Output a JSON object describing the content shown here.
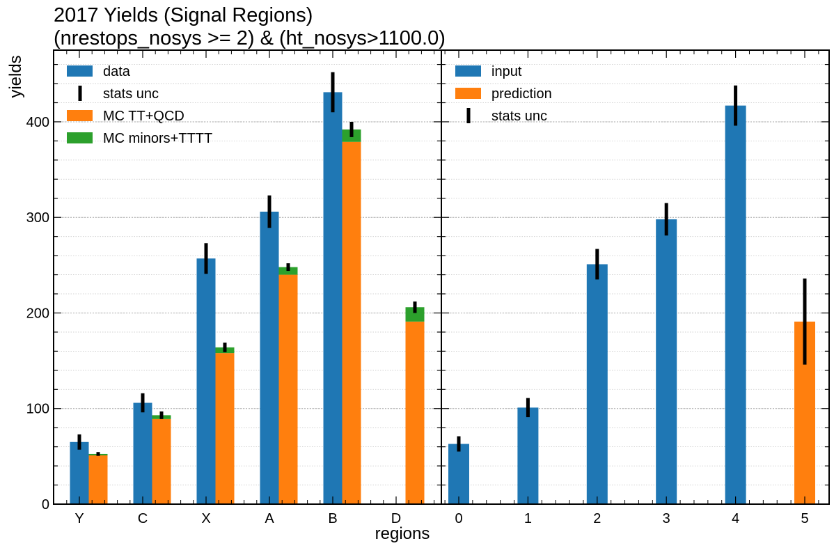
{
  "title_line1": "2017 Yields (Signal Regions)",
  "title_line2": "(nrestops_nosys >= 2) & (ht_nosys>1100.0)",
  "xlabel": "regions",
  "ylabel": "yields",
  "colors": {
    "blue": "#1f77b4",
    "orange": "#ff7f0e",
    "green": "#2ca02c",
    "err": "#000000"
  },
  "chart_data": [
    {
      "type": "bar",
      "categories": [
        "Y",
        "C",
        "X",
        "A",
        "B",
        "D"
      ],
      "ylim": [
        0,
        475
      ],
      "yticks": [
        0,
        100,
        200,
        300,
        400
      ],
      "grid": true,
      "legend_position": "top-left",
      "legend": [
        "data",
        "stats unc",
        "MC TT+QCD",
        "MC minors+TTTT"
      ],
      "series": [
        {
          "name": "data",
          "values": [
            65,
            106,
            257,
            306,
            431,
            null
          ],
          "errors": [
            8,
            10,
            16,
            17,
            21,
            null
          ]
        },
        {
          "name": "MC TT+QCD",
          "values": [
            51,
            89,
            158,
            240,
            379,
            191
          ]
        },
        {
          "name": "MC minors+TTTT",
          "values": [
            1.5,
            4,
            6,
            8,
            13,
            15
          ]
        }
      ],
      "mc_errors": [
        2,
        4,
        5,
        4,
        8,
        6
      ]
    },
    {
      "type": "bar",
      "categories": [
        "0",
        "1",
        "2",
        "3",
        "4",
        "5"
      ],
      "ylim": [
        0,
        475
      ],
      "grid": true,
      "legend_position": "top-left",
      "legend": [
        "input",
        "prediction",
        "stats unc"
      ],
      "series": [
        {
          "name": "input",
          "values": [
            63,
            101,
            251,
            298,
            417,
            null
          ],
          "errors": [
            8,
            10,
            16,
            17,
            21,
            null
          ]
        },
        {
          "name": "prediction",
          "values": [
            null,
            null,
            null,
            null,
            null,
            191
          ],
          "errors": [
            null,
            null,
            null,
            null,
            null,
            45
          ]
        }
      ]
    }
  ]
}
